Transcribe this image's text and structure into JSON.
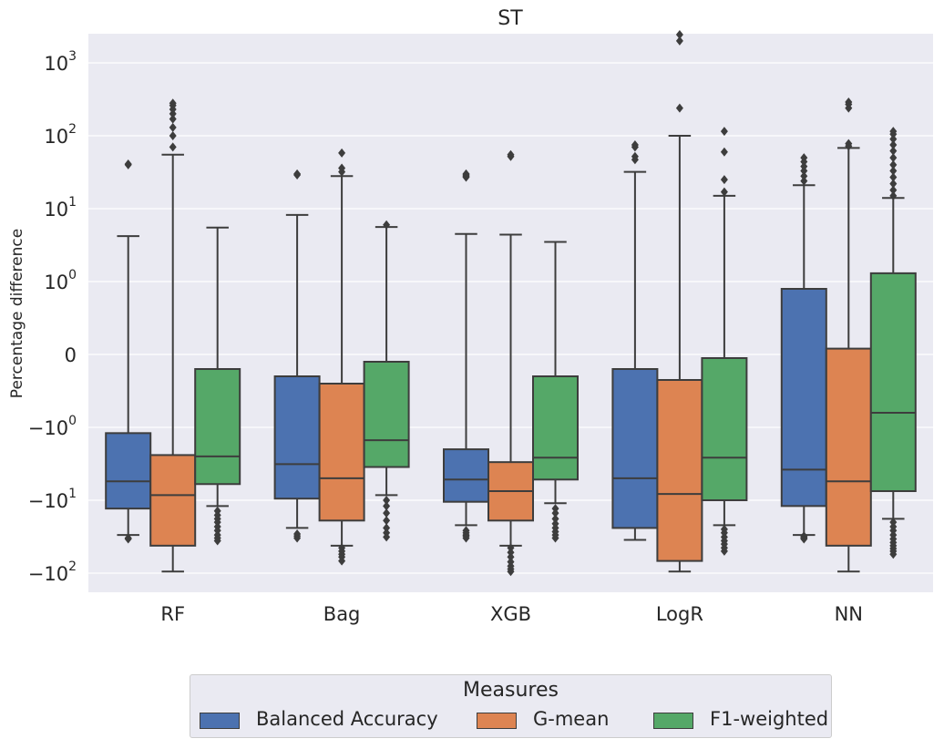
{
  "chart_data": {
    "type": "box",
    "title": "ST",
    "ylabel": "Percentage difference",
    "xlabel": "",
    "y_scale": "symlog",
    "y_ticks": [
      "10^3",
      "10^2",
      "10^1",
      "10^0",
      "0",
      "-10^0",
      "-10^1",
      "-10^2"
    ],
    "categories": [
      "RF",
      "Bag",
      "XGB",
      "LogR",
      "NN"
    ],
    "legend": {
      "title": "Measures",
      "placement": "bottom-center, outside plot"
    },
    "grid": true,
    "series": [
      {
        "name": "Balanced Accuracy",
        "color": "#4c72b0",
        "boxes": [
          {
            "lower_whisker": -30,
            "q1": -13,
            "median": -5.5,
            "q3": -1.2,
            "upper_whisker": 4.2,
            "outliers": [
              -33,
              -34,
              40,
              41
            ]
          },
          {
            "lower_whisker": -24,
            "q1": -9.5,
            "median": -3.2,
            "q3": -0.3,
            "upper_whisker": 8.2,
            "outliers": [
              -29,
              -31,
              -33,
              29,
              30
            ]
          },
          {
            "lower_whisker": -22,
            "q1": -10.5,
            "median": -5.2,
            "q3": -2.0,
            "upper_whisker": 4.5,
            "outliers": [
              -26,
              -28,
              -30,
              -31,
              -33,
              27,
              28,
              29,
              30
            ]
          },
          {
            "lower_whisker": -35,
            "q1": -24,
            "median": -5.0,
            "q3": -0.2,
            "upper_whisker": 32,
            "outliers": [
              47,
              52,
              70,
              75
            ]
          },
          {
            "lower_whisker": -30,
            "q1": -12,
            "median": -3.8,
            "q3": 0.9,
            "upper_whisker": 21,
            "outliers": [
              -31,
              -32,
              -33,
              -34,
              24,
              28,
              33,
              38,
              44,
              50
            ]
          }
        ]
      },
      {
        "name": "G-mean",
        "color": "#dd8452",
        "boxes": [
          {
            "lower_whisker": -95,
            "q1": -42,
            "median": -8.5,
            "q3": -2.4,
            "upper_whisker": 55,
            "outliers": [
              70,
              100,
              130,
              170,
              200,
              230,
              260,
              280
            ]
          },
          {
            "lower_whisker": -42,
            "q1": -19,
            "median": -5.0,
            "q3": -0.4,
            "upper_whisker": 28,
            "outliers": [
              -45,
              -50,
              -55,
              -60,
              -68,
              32,
              36,
              58
            ]
          },
          {
            "lower_whisker": -42,
            "q1": -19,
            "median": -7.5,
            "q3": -3.0,
            "upper_whisker": 4.4,
            "outliers": [
              -45,
              -52,
              -60,
              -70,
              -80,
              -88,
              -95,
              52,
              55
            ]
          },
          {
            "lower_whisker": -95,
            "q1": -68,
            "median": -8.2,
            "q3": -0.35,
            "upper_whisker": 100,
            "outliers": [
              240,
              2000,
              4000
            ]
          },
          {
            "lower_whisker": -95,
            "q1": -42,
            "median": -5.5,
            "q3": 0.08,
            "upper_whisker": 68,
            "outliers": [
              72,
              78,
              240,
              270,
              290
            ]
          }
        ]
      },
      {
        "name": "F1-weighted",
        "color": "#55a868",
        "boxes": [
          {
            "lower_whisker": -12,
            "q1": -6.0,
            "median": -2.5,
            "q3": -0.2,
            "upper_whisker": 5.5,
            "outliers": [
              -14,
              -16,
              -18,
              -20,
              -23,
              -26,
              -30,
              -33,
              -36
            ]
          },
          {
            "lower_whisker": -8.5,
            "q1": -3.5,
            "median": -1.5,
            "q3": -0.1,
            "upper_whisker": 5.6,
            "outliers": [
              -10,
              -12,
              -15,
              -19,
              -24,
              -28,
              -32,
              6.0
            ]
          },
          {
            "lower_whisker": -11,
            "q1": -5.2,
            "median": -2.6,
            "q3": -0.3,
            "upper_whisker": 3.5,
            "outliers": [
              -13,
              -15,
              -18,
              -21,
              -24,
              -27,
              -30,
              -33
            ]
          },
          {
            "lower_whisker": -22,
            "q1": -10,
            "median": -2.6,
            "q3": -0.05,
            "upper_whisker": 15,
            "outliers": [
              -25,
              -28,
              -32,
              -36,
              -40,
              -45,
              -50,
              17,
              25,
              60,
              115
            ]
          },
          {
            "lower_whisker": -18,
            "q1": -7.5,
            "median": -0.8,
            "q3": 1.3,
            "upper_whisker": 14,
            "outliers": [
              -20,
              -23,
              -26,
              -30,
              -34,
              -38,
              -42,
              -46,
              -50,
              -55,
              15,
              18,
              22,
              27,
              33,
              40,
              50,
              62,
              75,
              90,
              105,
              115
            ]
          }
        ]
      }
    ]
  }
}
